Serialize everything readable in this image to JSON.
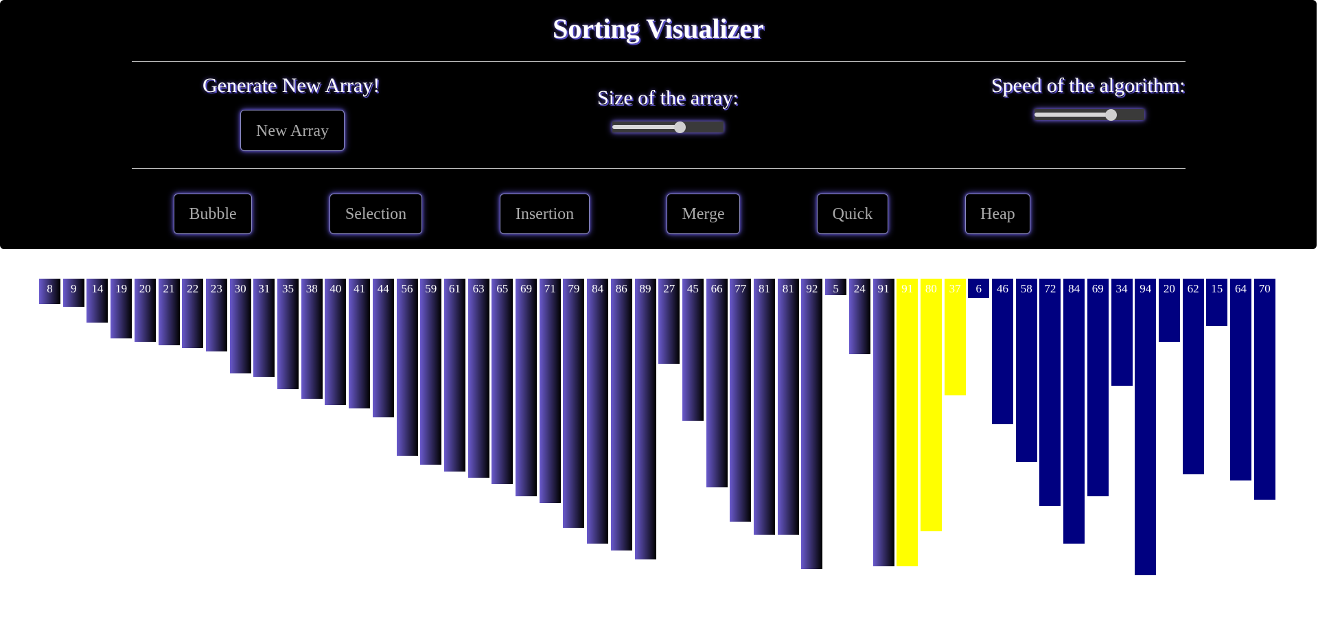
{
  "header": {
    "title": "Sorting Visualizer",
    "generate_label": "Generate New Array!",
    "new_array_button": "New Array",
    "size_label": "Size of the array:",
    "speed_label": "Speed of the algorithm:"
  },
  "sliders": {
    "size_value": 0.62,
    "speed_value": 0.72
  },
  "algorithms": [
    "Bubble",
    "Selection",
    "Insertion",
    "Merge",
    "Quick",
    "Heap"
  ],
  "colors": {
    "bar_gradient_start": "#6a5acd",
    "bar_gradient_end": "#000000",
    "bar_compare": "#ffff00",
    "bar_pending": "#000080",
    "accent_glow": "#6a5acd"
  },
  "array": [
    {
      "v": 8,
      "state": "sorted"
    },
    {
      "v": 9,
      "state": "sorted"
    },
    {
      "v": 14,
      "state": "sorted"
    },
    {
      "v": 19,
      "state": "sorted"
    },
    {
      "v": 20,
      "state": "sorted"
    },
    {
      "v": 21,
      "state": "sorted"
    },
    {
      "v": 22,
      "state": "sorted"
    },
    {
      "v": 23,
      "state": "sorted"
    },
    {
      "v": 30,
      "state": "sorted"
    },
    {
      "v": 31,
      "state": "sorted"
    },
    {
      "v": 35,
      "state": "sorted"
    },
    {
      "v": 38,
      "state": "sorted"
    },
    {
      "v": 40,
      "state": "sorted"
    },
    {
      "v": 41,
      "state": "sorted"
    },
    {
      "v": 44,
      "state": "sorted"
    },
    {
      "v": 56,
      "state": "sorted"
    },
    {
      "v": 59,
      "state": "sorted"
    },
    {
      "v": 61,
      "state": "sorted"
    },
    {
      "v": 63,
      "state": "sorted"
    },
    {
      "v": 65,
      "state": "sorted"
    },
    {
      "v": 69,
      "state": "sorted"
    },
    {
      "v": 71,
      "state": "sorted"
    },
    {
      "v": 79,
      "state": "sorted"
    },
    {
      "v": 84,
      "state": "sorted"
    },
    {
      "v": 86,
      "state": "sorted"
    },
    {
      "v": 89,
      "state": "sorted"
    },
    {
      "v": 27,
      "state": "sorted"
    },
    {
      "v": 45,
      "state": "sorted"
    },
    {
      "v": 66,
      "state": "sorted"
    },
    {
      "v": 77,
      "state": "sorted"
    },
    {
      "v": 81,
      "state": "sorted"
    },
    {
      "v": 81,
      "state": "sorted"
    },
    {
      "v": 92,
      "state": "sorted"
    },
    {
      "v": 5,
      "state": "sorted"
    },
    {
      "v": 24,
      "state": "sorted"
    },
    {
      "v": 91,
      "state": "sorted"
    },
    {
      "v": 91,
      "state": "compare"
    },
    {
      "v": 80,
      "state": "compare"
    },
    {
      "v": 37,
      "state": "compare"
    },
    {
      "v": 6,
      "state": "pending"
    },
    {
      "v": 46,
      "state": "pending"
    },
    {
      "v": 58,
      "state": "pending"
    },
    {
      "v": 72,
      "state": "pending"
    },
    {
      "v": 84,
      "state": "pending"
    },
    {
      "v": 69,
      "state": "pending"
    },
    {
      "v": 34,
      "state": "pending"
    },
    {
      "v": 94,
      "state": "pending"
    },
    {
      "v": 20,
      "state": "pending"
    },
    {
      "v": 62,
      "state": "pending"
    },
    {
      "v": 15,
      "state": "pending"
    },
    {
      "v": 64,
      "state": "pending"
    },
    {
      "v": 70,
      "state": "pending"
    }
  ]
}
